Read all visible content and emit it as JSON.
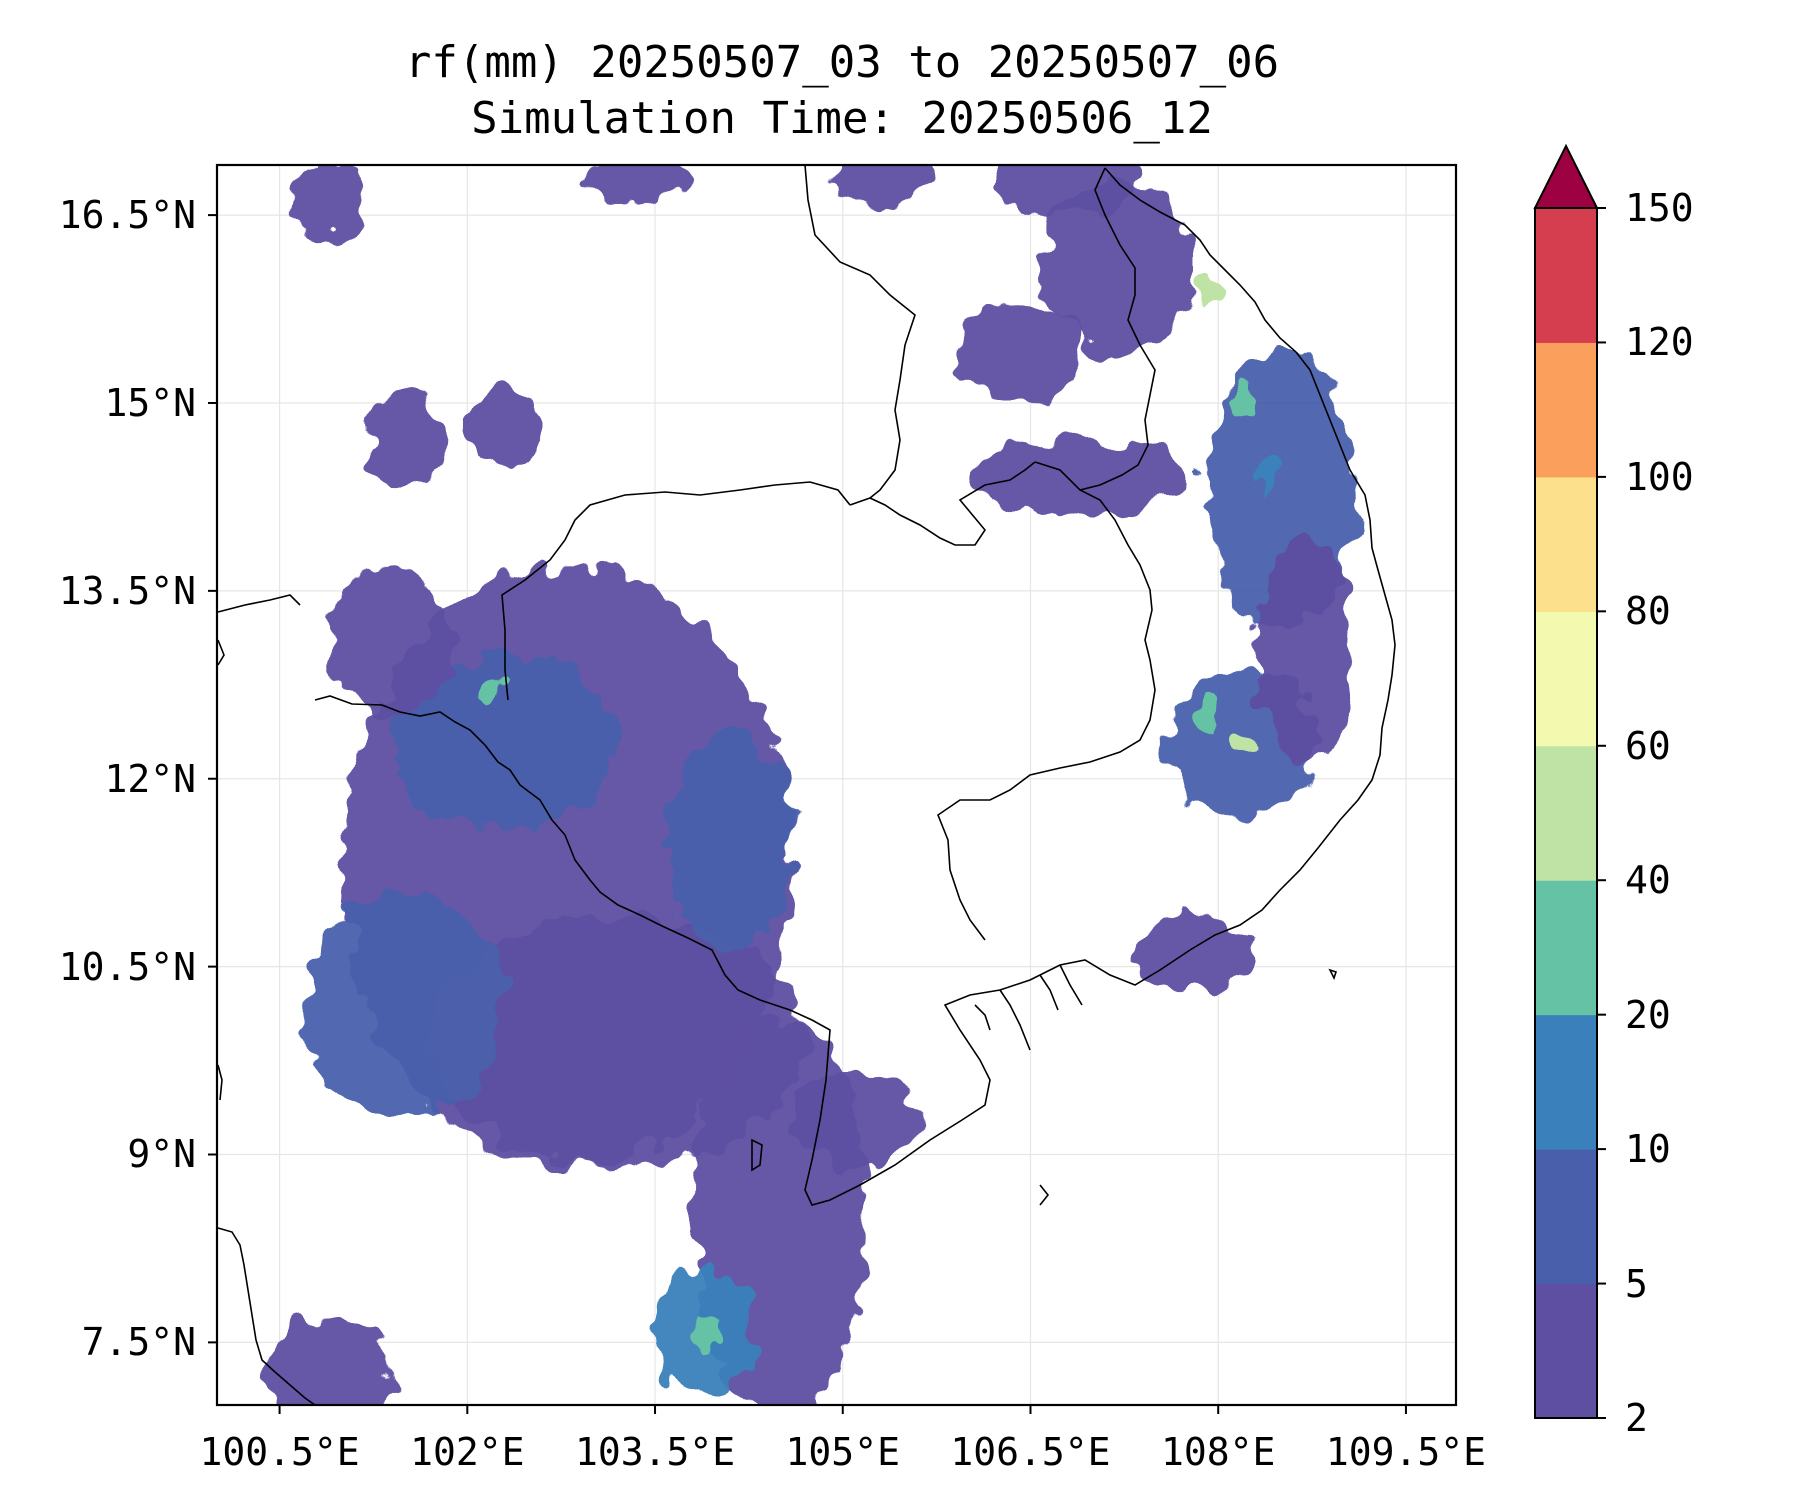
{
  "title": {
    "line1": "rf(mm) 20250507_03 to 20250507_06",
    "line2": "Simulation Time: 20250506_12"
  },
  "map": {
    "lon_range": [
      100.0,
      109.9
    ],
    "lat_range": [
      7.0,
      16.9
    ],
    "lat_ticks": [
      {
        "value": 16.5,
        "label": "16.5°N"
      },
      {
        "value": 15.0,
        "label": "15°N"
      },
      {
        "value": 13.5,
        "label": "13.5°N"
      },
      {
        "value": 12.0,
        "label": "12°N"
      },
      {
        "value": 10.5,
        "label": "10.5°N"
      },
      {
        "value": 9.0,
        "label": "9°N"
      },
      {
        "value": 7.5,
        "label": "7.5°N"
      }
    ],
    "lon_ticks": [
      {
        "value": 100.5,
        "label": "100.5°E"
      },
      {
        "value": 102.0,
        "label": "102°E"
      },
      {
        "value": 103.5,
        "label": "103.5°E"
      },
      {
        "value": 105.0,
        "label": "105°E"
      },
      {
        "value": 106.5,
        "label": "106.5°E"
      },
      {
        "value": 108.0,
        "label": "108°E"
      },
      {
        "value": 109.5,
        "label": "109.5°E"
      }
    ],
    "grid": true
  },
  "colorbar": {
    "levels": [
      2,
      5,
      10,
      20,
      40,
      60,
      80,
      100,
      120,
      150
    ],
    "labels": [
      "2",
      "5",
      "10",
      "20",
      "40",
      "60",
      "80",
      "100",
      "120",
      "150"
    ],
    "colors": [
      "#5e4fa2",
      "#4a5fac",
      "#3a81bb",
      "#66c2a5",
      "#bee3a4",
      "#f3f9ae",
      "#fde08b",
      "#fba05c",
      "#d53e4f"
    ],
    "extend_color": "#9e0142",
    "extend": "max"
  },
  "rain_regions": [
    {
      "lon": 102.8,
      "lat": 11.3,
      "rx": 1.8,
      "ry": 2.4,
      "level": 0
    },
    {
      "lon": 103.2,
      "lat": 9.9,
      "rx": 1.5,
      "ry": 1.0,
      "level": 0
    },
    {
      "lon": 102.3,
      "lat": 12.3,
      "rx": 0.9,
      "ry": 0.7,
      "level": 1
    },
    {
      "lon": 101.5,
      "lat": 10.2,
      "rx": 0.8,
      "ry": 0.9,
      "level": 1
    },
    {
      "lon": 104.5,
      "lat": 8.5,
      "rx": 0.7,
      "ry": 1.6,
      "level": 0
    },
    {
      "lon": 103.9,
      "lat": 7.6,
      "rx": 0.4,
      "ry": 0.5,
      "level": 2
    },
    {
      "lon": 104.1,
      "lat": 11.5,
      "rx": 0.5,
      "ry": 0.9,
      "level": 1
    },
    {
      "lon": 101.4,
      "lat": 13.1,
      "rx": 0.5,
      "ry": 0.6,
      "level": 0
    },
    {
      "lon": 100.9,
      "lat": 7.2,
      "rx": 0.5,
      "ry": 0.5,
      "level": 0
    },
    {
      "lon": 105.1,
      "lat": 9.3,
      "rx": 0.5,
      "ry": 0.4,
      "level": 0
    },
    {
      "lon": 108.5,
      "lat": 14.3,
      "rx": 0.6,
      "ry": 1.1,
      "level": 1
    },
    {
      "lon": 108.2,
      "lat": 12.3,
      "rx": 0.6,
      "ry": 0.6,
      "level": 1
    },
    {
      "lon": 108.7,
      "lat": 13.0,
      "rx": 0.4,
      "ry": 0.9,
      "level": 0
    },
    {
      "lon": 107.2,
      "lat": 16.1,
      "rx": 0.6,
      "ry": 0.7,
      "level": 0
    },
    {
      "lon": 106.4,
      "lat": 15.4,
      "rx": 0.5,
      "ry": 0.4,
      "level": 0
    },
    {
      "lon": 106.9,
      "lat": 14.4,
      "rx": 0.9,
      "ry": 0.3,
      "level": 0
    },
    {
      "lon": 107.8,
      "lat": 10.6,
      "rx": 0.5,
      "ry": 0.3,
      "level": 0
    },
    {
      "lon": 100.9,
      "lat": 16.6,
      "rx": 0.3,
      "ry": 0.3,
      "level": 0
    },
    {
      "lon": 101.5,
      "lat": 14.7,
      "rx": 0.3,
      "ry": 0.4,
      "level": 0
    },
    {
      "lon": 102.3,
      "lat": 14.8,
      "rx": 0.3,
      "ry": 0.3,
      "level": 0
    },
    {
      "lon": 106.8,
      "lat": 16.8,
      "rx": 0.6,
      "ry": 0.3,
      "level": 0
    },
    {
      "lon": 105.3,
      "lat": 16.8,
      "rx": 0.4,
      "ry": 0.2,
      "level": 0
    },
    {
      "lon": 103.4,
      "lat": 16.8,
      "rx": 0.4,
      "ry": 0.2,
      "level": 0
    }
  ],
  "rain_spots": [
    {
      "lon": 107.9,
      "lat": 15.9,
      "level": 4
    },
    {
      "lon": 108.2,
      "lat": 12.3,
      "level": 4
    },
    {
      "lon": 103.9,
      "lat": 7.6,
      "level": 3
    },
    {
      "lon": 102.2,
      "lat": 12.7,
      "level": 3
    },
    {
      "lon": 108.2,
      "lat": 15.0,
      "level": 3
    },
    {
      "lon": 108.4,
      "lat": 14.4,
      "level": 2
    },
    {
      "lon": 107.9,
      "lat": 12.5,
      "level": 3
    }
  ]
}
